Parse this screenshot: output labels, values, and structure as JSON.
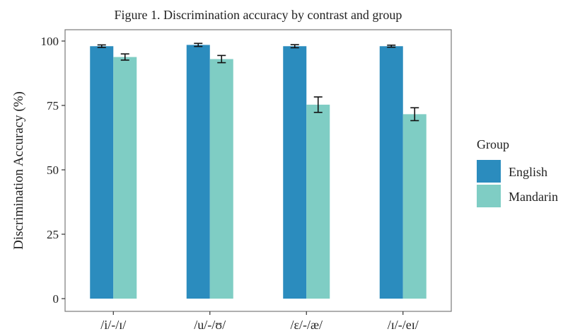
{
  "chart_data": {
    "type": "bar",
    "title": "Figure 1. Discrimination accuracy by contrast and group",
    "xlabel": "",
    "ylabel": "Discrimination Accuracy (%)",
    "ylim": [
      0,
      100
    ],
    "yticks": [
      0,
      25,
      50,
      75,
      100
    ],
    "grid": false,
    "legend_position": "right",
    "legend_title": "Group",
    "categories": [
      "/i/-/ɪ/",
      "/u/-/ʊ/",
      "/ɛ/-/æ/",
      "/ɪ/-/eɪ/"
    ],
    "series": [
      {
        "name": "English",
        "color": "#2b8cbe",
        "values": [
          98,
          98.5,
          98,
          98
        ],
        "error": [
          0.5,
          0.6,
          0.6,
          0.4
        ]
      },
      {
        "name": "Mandarin",
        "color": "#7fcdc4",
        "values": [
          93.8,
          93,
          75.3,
          71.6
        ],
        "error": [
          1.2,
          1.4,
          3,
          2.5
        ]
      }
    ]
  }
}
